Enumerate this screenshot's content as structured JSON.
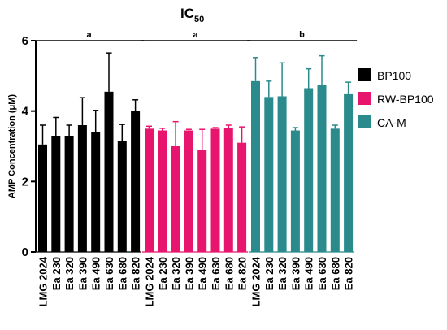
{
  "chart_data": {
    "type": "bar",
    "title": "IC",
    "title_subscript": "50",
    "ylabel": "AMP Concentration (μM)",
    "ylim": [
      0,
      6
    ],
    "yticks": [
      0,
      2,
      4,
      6
    ],
    "grid": false,
    "legend_position": "right",
    "categories": [
      "LMG 2024",
      "Ea 230",
      "Ea 320",
      "Ea 390",
      "Ea 490",
      "Ea 630",
      "Ea 680",
      "Ea 820"
    ],
    "series": [
      {
        "name": "BP100",
        "color": "#000000",
        "values": [
          3.05,
          3.3,
          3.3,
          3.6,
          3.4,
          4.55,
          3.15,
          4.0
        ],
        "errors": [
          0.55,
          0.52,
          0.3,
          0.78,
          0.62,
          1.1,
          0.47,
          0.32
        ],
        "significance": "a"
      },
      {
        "name": "RW-BP100",
        "color": "#e8156e",
        "values": [
          3.5,
          3.45,
          3.0,
          3.45,
          2.9,
          3.5,
          3.52,
          3.1
        ],
        "errors": [
          0.07,
          0.06,
          0.7,
          0.03,
          0.58,
          0.03,
          0.08,
          0.45
        ],
        "significance": "a"
      },
      {
        "name": "CA-M",
        "color": "#2a8a8c",
        "values": [
          4.85,
          4.4,
          4.42,
          3.45,
          4.65,
          4.75,
          3.5,
          4.48
        ],
        "errors": [
          0.67,
          0.45,
          0.95,
          0.08,
          0.55,
          0.82,
          0.1,
          0.34
        ],
        "significance": "b"
      }
    ]
  }
}
